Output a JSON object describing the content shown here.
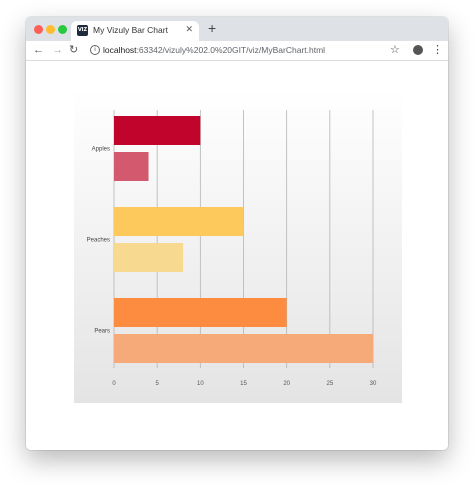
{
  "browser": {
    "tab_title": "My Vizuly Bar Chart",
    "favicon_text": "VIZ",
    "url_host": "localhost",
    "url_rest": ":63342/vizuly%202.0%20GIT/viz/MyBarChart.html"
  },
  "chart_data": {
    "type": "bar",
    "orientation": "horizontal",
    "categories": [
      "Apples",
      "Peaches",
      "Pears"
    ],
    "series": [
      {
        "values": [
          10,
          15,
          20
        ]
      },
      {
        "values": [
          4,
          8,
          30
        ]
      }
    ],
    "colors": [
      [
        "#c0042b",
        "#d35a6e"
      ],
      [
        "#fec95c",
        "#f7d990"
      ],
      [
        "#fe8c40",
        "#f6aa79"
      ]
    ],
    "xlim": [
      0,
      30
    ],
    "xticks": [
      0,
      5,
      10,
      15,
      20,
      25,
      30
    ],
    "grid": true,
    "background_gradient": [
      "#ffffff",
      "#e4e4e4"
    ]
  }
}
